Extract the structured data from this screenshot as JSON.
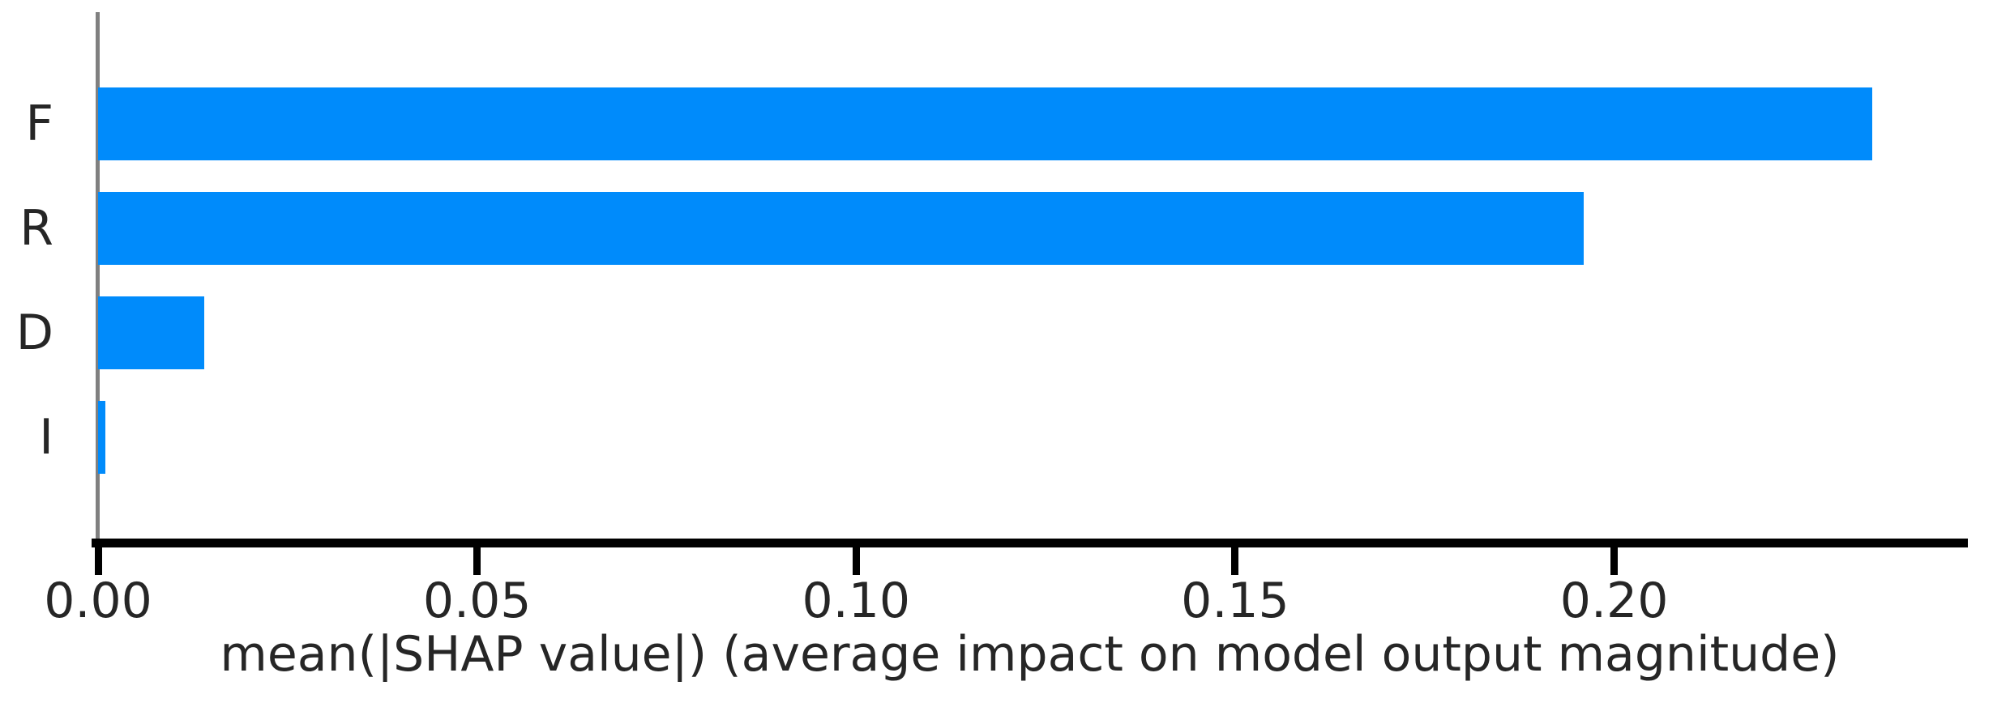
{
  "figure": {
    "background": "#ffffff"
  },
  "chart_data": {
    "type": "bar",
    "orientation": "horizontal",
    "title": "",
    "xlabel": "mean(|SHAP value|) (average impact on model output magnitude)",
    "ylabel": "",
    "categories": [
      "F",
      "R",
      "D",
      "I"
    ],
    "values": [
      0.234,
      0.196,
      0.014,
      0.001
    ],
    "xlim": [
      0,
      0.247
    ],
    "xticks": [
      0,
      0.05,
      0.1,
      0.15,
      0.2
    ],
    "xtick_labels": [
      "0.00",
      "0.05",
      "0.10",
      "0.15",
      "0.20"
    ],
    "grid": false,
    "legend": "none",
    "colors": {
      "bar": "#008bfb",
      "axis": "#000000",
      "spine": "#808080",
      "text": "#262626"
    }
  }
}
